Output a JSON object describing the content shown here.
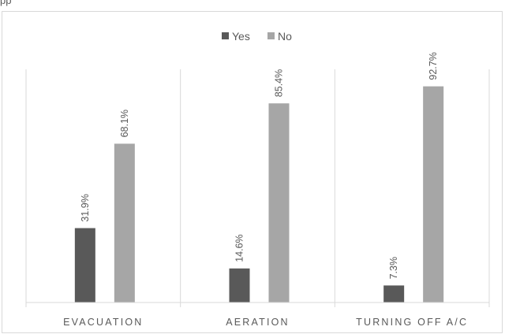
{
  "page": {
    "top_fragment": "pp"
  },
  "chart_data": {
    "type": "bar",
    "categories": [
      "EVACUATION",
      "AERATION",
      "TURNING OFF A/C"
    ],
    "series": [
      {
        "name": "Yes",
        "values": [
          31.9,
          14.6,
          7.3
        ],
        "labels": [
          "31.9%",
          "14.6%",
          "7.3%"
        ],
        "color": "#595959"
      },
      {
        "name": "No",
        "values": [
          68.1,
          85.4,
          92.7
        ],
        "labels": [
          "68.1%",
          "85.4%",
          "92.7%"
        ],
        "color": "#a6a6a6"
      }
    ],
    "ylim": [
      0,
      100
    ],
    "legend_position": "top",
    "grid": false,
    "category_separators": true
  }
}
